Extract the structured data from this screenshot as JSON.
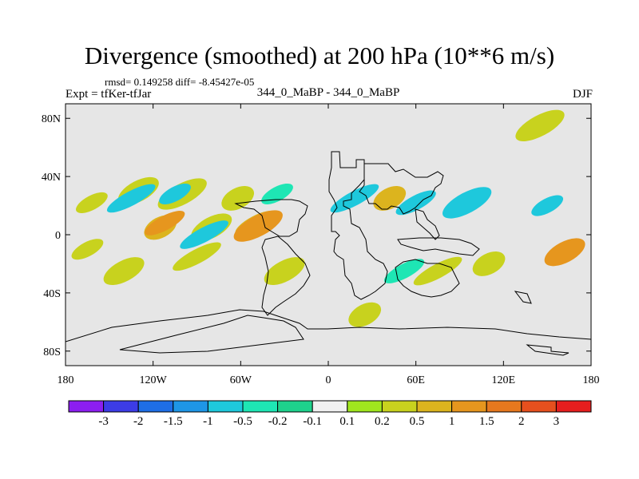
{
  "title": "Divergence (smoothed) at 200 hPa (10**6 m/s)",
  "stats": "rmsd= 0.149258 diff= -8.45427e-05",
  "expt": "Expt = tfKer-tfJar",
  "case": "344_0_MaBP - 344_0_MaBP",
  "season": "DJF",
  "map": {
    "projection": "cylindrical equidistant",
    "extent": {
      "lon": [
        -180,
        180
      ],
      "lat": [
        -90,
        90
      ]
    },
    "background_color": "#e6e6e6",
    "coastline_color": "#000000",
    "lat_ticks": [
      {
        "value": 80,
        "label": "80N"
      },
      {
        "value": 40,
        "label": "40N"
      },
      {
        "value": 0,
        "label": "0"
      },
      {
        "value": -40,
        "label": "40S"
      },
      {
        "value": -80,
        "label": "80S"
      }
    ],
    "lon_ticks": [
      {
        "value": -180,
        "label": "180"
      },
      {
        "value": -120,
        "label": "120W"
      },
      {
        "value": -60,
        "label": "60W"
      },
      {
        "value": 0,
        "label": "0"
      },
      {
        "value": 60,
        "label": "60E"
      },
      {
        "value": 120,
        "label": "120E"
      },
      {
        "value": 180,
        "label": "180"
      }
    ]
  },
  "colorbar": {
    "colors": [
      "#8c1ef0",
      "#3c3ce6",
      "#1e6ee6",
      "#1e96e6",
      "#1ec8dc",
      "#1ee6b4",
      "#1ed28c",
      "#f0f0f0",
      "#a0e61e",
      "#c8d21e",
      "#dcb41e",
      "#e6961e",
      "#e6781e",
      "#e6501e",
      "#e61e1e"
    ],
    "labels": [
      "-3",
      "-2",
      "-1.5",
      "-1",
      "-0.5",
      "-0.2",
      "-0.1",
      "0.1",
      "0.2",
      "0.5",
      "1",
      "1.5",
      "2",
      "3"
    ]
  },
  "features": [
    {
      "lon": -162,
      "lat": 22,
      "level": "0.2"
    },
    {
      "lon": -130,
      "lat": 30,
      "level": "0.2"
    },
    {
      "lon": -135,
      "lat": 25,
      "level": "-0.5"
    },
    {
      "lon": -115,
      "lat": 5,
      "level": "0.5"
    },
    {
      "lon": -112,
      "lat": 8,
      "level": "1"
    },
    {
      "lon": -100,
      "lat": 28,
      "level": "0.2"
    },
    {
      "lon": -105,
      "lat": 28,
      "level": "-0.5"
    },
    {
      "lon": -80,
      "lat": 5,
      "level": "0.2"
    },
    {
      "lon": -85,
      "lat": 0,
      "level": "-0.5"
    },
    {
      "lon": -62,
      "lat": 25,
      "level": "0.2"
    },
    {
      "lon": -50,
      "lat": 8,
      "level": "0.5"
    },
    {
      "lon": -48,
      "lat": 6,
      "level": "1"
    },
    {
      "lon": -35,
      "lat": 28,
      "level": "-0.2"
    },
    {
      "lon": -30,
      "lat": -25,
      "level": "0.2"
    },
    {
      "lon": 18,
      "lat": 25,
      "level": "-0.5"
    },
    {
      "lon": 42,
      "lat": 25,
      "level": "0.5"
    },
    {
      "lon": 60,
      "lat": 22,
      "level": "-0.5"
    },
    {
      "lon": 95,
      "lat": 22,
      "level": "-0.5"
    },
    {
      "lon": 150,
      "lat": 20,
      "level": "-0.5"
    },
    {
      "lon": 162,
      "lat": -12,
      "level": "1"
    },
    {
      "lon": 75,
      "lat": -25,
      "level": "0.2"
    },
    {
      "lon": 110,
      "lat": -20,
      "level": "0.2"
    },
    {
      "lon": 52,
      "lat": -25,
      "level": "-0.2"
    },
    {
      "lon": 145,
      "lat": 75,
      "level": "0.2"
    },
    {
      "lon": -165,
      "lat": -10,
      "level": "0.2"
    },
    {
      "lon": -140,
      "lat": -25,
      "level": "0.2"
    },
    {
      "lon": -90,
      "lat": -15,
      "level": "0.2"
    },
    {
      "lon": 25,
      "lat": -55,
      "level": "0.2"
    }
  ]
}
